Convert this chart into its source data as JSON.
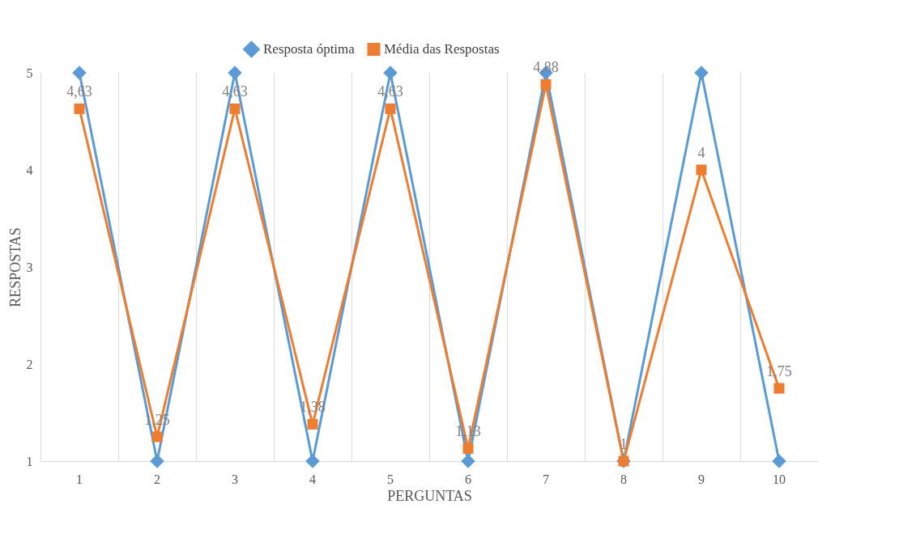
{
  "chart_data": {
    "type": "line",
    "xlabel": "PERGUNTAS",
    "ylabel": "RESPOSTAS",
    "categories": [
      "1",
      "2",
      "3",
      "4",
      "5",
      "6",
      "7",
      "8",
      "9",
      "10"
    ],
    "ylim": [
      1,
      5
    ],
    "yticks": [
      1,
      2,
      3,
      4,
      5
    ],
    "grid": "x",
    "legend": "top",
    "series": [
      {
        "name": "Resposta óptima",
        "color": "#5b9bd5",
        "marker": "diamond",
        "values": [
          5,
          1,
          5,
          1,
          5,
          1,
          5,
          1,
          5,
          1
        ]
      },
      {
        "name": "Média das Respostas",
        "color": "#ed7d31",
        "marker": "square",
        "values": [
          4.63,
          1.25,
          4.63,
          1.38,
          4.63,
          1.13,
          4.88,
          1,
          4,
          1.75
        ],
        "value_labels": [
          "4,63",
          "1,25",
          "4,63",
          "1,38",
          "4,63",
          "1,13",
          "4,88",
          "1",
          "4",
          "1,75"
        ]
      }
    ]
  }
}
